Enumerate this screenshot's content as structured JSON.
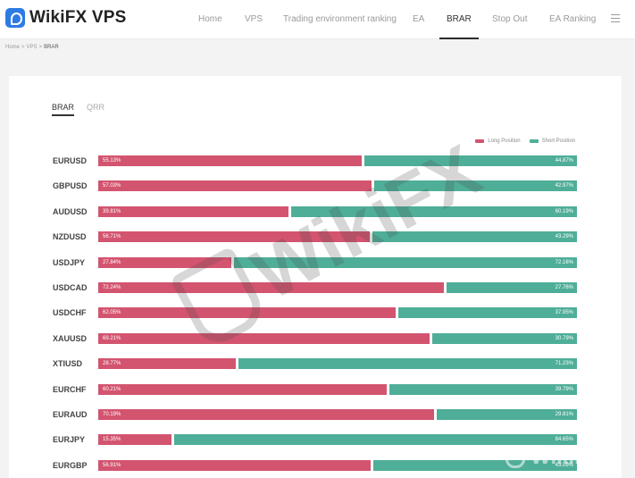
{
  "header": {
    "logo_text": "WikiFX VPS",
    "nav": [
      {
        "label": "Home",
        "active": false
      },
      {
        "label": "VPS",
        "active": false
      },
      {
        "label": "Trading environment ranking",
        "active": false
      },
      {
        "label": "EA",
        "active": false
      },
      {
        "label": "BRAR",
        "active": true
      },
      {
        "label": "Stop Out",
        "active": false
      },
      {
        "label": "EA Ranking",
        "active": false
      }
    ]
  },
  "breadcrumb": {
    "items": [
      "Home",
      "VPS",
      "BRAR"
    ],
    "separator": ">"
  },
  "tabs": [
    {
      "label": "BRAR",
      "active": true
    },
    {
      "label": "QRR",
      "active": false
    }
  ],
  "legend": {
    "long": {
      "label": "Long Position",
      "color": "#d3546f"
    },
    "short": {
      "label": "Short Position",
      "color": "#4fae98"
    }
  },
  "rows": [
    {
      "pair": "EURUSD",
      "long": 55.13,
      "long_label": "55.13%",
      "short_label": "44.87%"
    },
    {
      "pair": "GBPUSD",
      "long": 57.03,
      "long_label": "57.03%",
      "short_label": "42.97%"
    },
    {
      "pair": "AUDUSD",
      "long": 39.81,
      "long_label": "39.81%",
      "short_label": "60.19%"
    },
    {
      "pair": "NZDUSD",
      "long": 56.71,
      "long_label": "56.71%",
      "short_label": "43.29%"
    },
    {
      "pair": "USDJPY",
      "long": 27.84,
      "long_label": "27.84%",
      "short_label": "72.16%"
    },
    {
      "pair": "USDCAD",
      "long": 72.24,
      "long_label": "72.24%",
      "short_label": "27.76%"
    },
    {
      "pair": "USDCHF",
      "long": 62.05,
      "long_label": "62.05%",
      "short_label": "37.95%"
    },
    {
      "pair": "XAUUSD",
      "long": 69.21,
      "long_label": "69.21%",
      "short_label": "30.79%"
    },
    {
      "pair": "XTIUSD",
      "long": 28.77,
      "long_label": "28.77%",
      "short_label": "71.23%"
    },
    {
      "pair": "EURCHF",
      "long": 60.21,
      "long_label": "60.21%",
      "short_label": "39.79%"
    },
    {
      "pair": "EURAUD",
      "long": 70.19,
      "long_label": "70.19%",
      "short_label": "29.81%"
    },
    {
      "pair": "EURJPY",
      "long": 15.35,
      "long_label": "15.35%",
      "short_label": "84.65%"
    },
    {
      "pair": "EURGBP",
      "long": 56.91,
      "long_label": "56.91%",
      "short_label": "43.09%"
    }
  ],
  "watermark": {
    "text": "WikiFX",
    "corner_text": "WikiFX"
  },
  "icons": {
    "logo": "wikifx-logo-icon",
    "menu": "hamburger-menu-icon",
    "watermark": "wikifx-shield-icon"
  }
}
